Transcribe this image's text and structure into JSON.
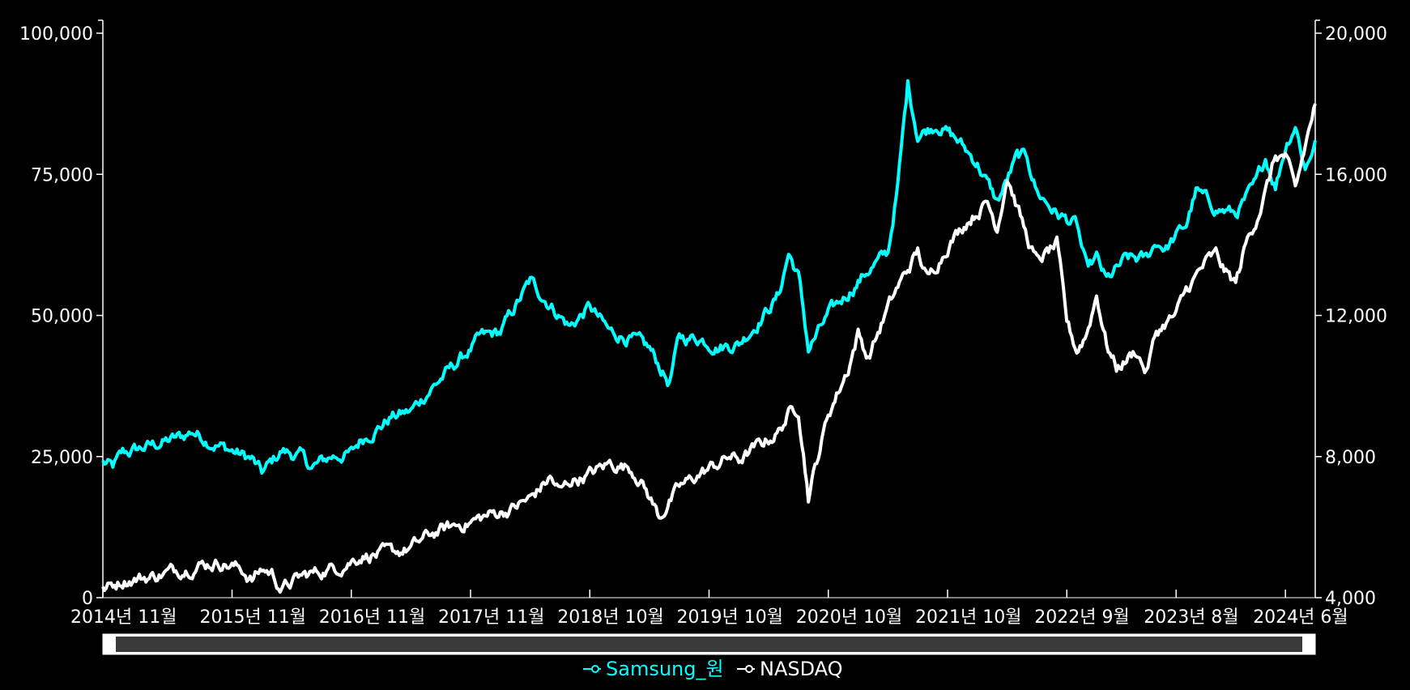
{
  "colors": {
    "background": "#000000",
    "samsung": "#00ffff",
    "nasdaq": "#ffffff",
    "axis": "#ffffff",
    "scrollbar_track": "#ffffff",
    "scrollbar_thumb": "#3a3a3a"
  },
  "chart_data": {
    "type": "line",
    "title": "",
    "xlabel": "",
    "x_range": [
      "2014-04",
      "2024-06"
    ],
    "y_left": {
      "range": [
        0,
        100000
      ],
      "ticks": [
        {
          "value": 0,
          "label": "0"
        },
        {
          "value": 25000,
          "label": "25,000"
        },
        {
          "value": 50000,
          "label": "50,000"
        },
        {
          "value": 75000,
          "label": "75,000"
        },
        {
          "value": 100000,
          "label": "100,000"
        }
      ]
    },
    "y_right": {
      "range": [
        4000,
        20000
      ],
      "ticks": [
        {
          "value": 4000,
          "label": "4,000"
        },
        {
          "value": 8000,
          "label": "8,000"
        },
        {
          "value": 12000,
          "label": "12,000"
        },
        {
          "value": 16000,
          "label": "16,000"
        },
        {
          "value": 20000,
          "label": "20,000"
        }
      ]
    },
    "x_ticks": [
      {
        "date": "2014-04",
        "label": "2014년 11월"
      },
      {
        "date": "2015-05",
        "label": "2015년 11월"
      },
      {
        "date": "2016-05",
        "label": "2016년 11월"
      },
      {
        "date": "2017-05",
        "label": "2017년 11월"
      },
      {
        "date": "2018-05",
        "label": "2018년 10월"
      },
      {
        "date": "2019-05",
        "label": "2019년 10월"
      },
      {
        "date": "2020-05",
        "label": "2020년 10월"
      },
      {
        "date": "2021-05",
        "label": "2021년 10월"
      },
      {
        "date": "2022-05",
        "label": "2022년 9월"
      },
      {
        "date": "2023-04",
        "label": "2023년 8월"
      },
      {
        "date": "2024-03",
        "label": "2024년 6월"
      }
    ],
    "legend_placement": "bottom-center",
    "grid": false,
    "series": [
      {
        "name": "Samsung_원",
        "axis": "left",
        "points": [
          [
            "2014-04",
            24000
          ],
          [
            "2014-05",
            23000
          ],
          [
            "2014-06",
            25500
          ],
          [
            "2014-08",
            26500
          ],
          [
            "2014-10",
            27500
          ],
          [
            "2014-12",
            28500
          ],
          [
            "2015-01",
            29500
          ],
          [
            "2015-03",
            27500
          ],
          [
            "2015-05",
            26000
          ],
          [
            "2015-07",
            24500
          ],
          [
            "2015-08",
            22000
          ],
          [
            "2015-10",
            26000
          ],
          [
            "2015-12",
            25000
          ],
          [
            "2016-01",
            23000
          ],
          [
            "2016-03",
            25000
          ],
          [
            "2016-05",
            25500
          ],
          [
            "2016-06",
            28000
          ],
          [
            "2016-08",
            30500
          ],
          [
            "2016-09",
            32000
          ],
          [
            "2016-11",
            33000
          ],
          [
            "2017-01",
            37000
          ],
          [
            "2017-03",
            40500
          ],
          [
            "2017-05",
            44000
          ],
          [
            "2017-06",
            46000
          ],
          [
            "2017-08",
            47000
          ],
          [
            "2017-10",
            53000
          ],
          [
            "2017-11",
            56000
          ],
          [
            "2018-01",
            52000
          ],
          [
            "2018-03",
            48000
          ],
          [
            "2018-05",
            51500
          ],
          [
            "2018-07",
            47000
          ],
          [
            "2018-09",
            46000
          ],
          [
            "2018-11",
            44000
          ],
          [
            "2019-01",
            38000
          ],
          [
            "2019-02",
            46000
          ],
          [
            "2019-04",
            46000
          ],
          [
            "2019-06",
            44500
          ],
          [
            "2019-08",
            45000
          ],
          [
            "2019-10",
            49000
          ],
          [
            "2019-12",
            53500
          ],
          [
            "2020-01",
            61000
          ],
          [
            "2020-02",
            57000
          ],
          [
            "2020-03",
            44000
          ],
          [
            "2020-05",
            50000
          ],
          [
            "2020-07",
            54000
          ],
          [
            "2020-09",
            58000
          ],
          [
            "2020-11",
            61000
          ],
          [
            "2020-12",
            73000
          ],
          [
            "2021-01",
            91000
          ],
          [
            "2021-02",
            82000
          ],
          [
            "2021-04",
            84000
          ],
          [
            "2021-06",
            81000
          ],
          [
            "2021-08",
            77000
          ],
          [
            "2021-10",
            70000
          ],
          [
            "2021-12",
            78000
          ],
          [
            "2022-01",
            78000
          ],
          [
            "2022-02",
            72000
          ],
          [
            "2022-04",
            68000
          ],
          [
            "2022-06",
            66000
          ],
          [
            "2022-07",
            58000
          ],
          [
            "2022-08",
            60000
          ],
          [
            "2022-09",
            56000
          ],
          [
            "2022-11",
            60000
          ],
          [
            "2023-01",
            60000
          ],
          [
            "2023-02",
            63000
          ],
          [
            "2023-03",
            62000
          ],
          [
            "2023-05",
            66000
          ],
          [
            "2023-06",
            72000
          ],
          [
            "2023-08",
            69000
          ],
          [
            "2023-10",
            68000
          ],
          [
            "2023-12",
            73000
          ],
          [
            "2024-01",
            78000
          ],
          [
            "2024-02",
            73000
          ],
          [
            "2024-03",
            80000
          ],
          [
            "2024-04",
            84000
          ],
          [
            "2024-05",
            76000
          ],
          [
            "2024-06",
            81000
          ]
        ]
      },
      {
        "name": "NASDAQ",
        "axis": "right",
        "points": [
          [
            "2014-04",
            4200
          ],
          [
            "2014-05",
            4350
          ],
          [
            "2014-06",
            4500
          ],
          [
            "2014-09",
            4600
          ],
          [
            "2014-11",
            4750
          ],
          [
            "2015-02",
            4950
          ],
          [
            "2015-04",
            5000
          ],
          [
            "2015-06",
            4800
          ],
          [
            "2015-07",
            4500
          ],
          [
            "2015-08",
            4800
          ],
          [
            "2015-09",
            4700
          ],
          [
            "2015-10",
            4250
          ],
          [
            "2015-12",
            4600
          ],
          [
            "2016-02",
            4750
          ],
          [
            "2016-04",
            4900
          ],
          [
            "2016-06",
            5200
          ],
          [
            "2016-09",
            5250
          ],
          [
            "2016-11",
            5400
          ],
          [
            "2017-01",
            5800
          ],
          [
            "2017-03",
            6000
          ],
          [
            "2017-05",
            6150
          ],
          [
            "2017-07",
            6350
          ],
          [
            "2017-09",
            6500
          ],
          [
            "2017-11",
            6800
          ],
          [
            "2018-01",
            7400
          ],
          [
            "2018-02",
            7000
          ],
          [
            "2018-03",
            7300
          ],
          [
            "2018-05",
            7500
          ],
          [
            "2018-07",
            7800
          ],
          [
            "2018-09",
            7700
          ],
          [
            "2018-10",
            7400
          ],
          [
            "2018-12",
            6300
          ],
          [
            "2019-02",
            7100
          ],
          [
            "2019-04",
            7500
          ],
          [
            "2019-06",
            7800
          ],
          [
            "2019-07",
            8000
          ],
          [
            "2019-08",
            7900
          ],
          [
            "2019-10",
            8300
          ],
          [
            "2019-12",
            8700
          ],
          [
            "2020-01",
            9200
          ],
          [
            "2020-02",
            9400
          ],
          [
            "2020-03",
            6900
          ],
          [
            "2020-05",
            9200
          ],
          [
            "2020-07",
            10500
          ],
          [
            "2020-08",
            11500
          ],
          [
            "2020-09",
            10800
          ],
          [
            "2020-11",
            12200
          ],
          [
            "2020-12",
            12800
          ],
          [
            "2021-02",
            13800
          ],
          [
            "2021-03",
            13000
          ],
          [
            "2021-05",
            14000
          ],
          [
            "2021-07",
            14700
          ],
          [
            "2021-09",
            15200
          ],
          [
            "2021-10",
            14500
          ],
          [
            "2021-11",
            16000
          ],
          [
            "2022-01",
            14200
          ],
          [
            "2022-02",
            13500
          ],
          [
            "2022-04",
            14000
          ],
          [
            "2022-05",
            11800
          ],
          [
            "2022-06",
            11000
          ],
          [
            "2022-07",
            11500
          ],
          [
            "2022-08",
            12600
          ],
          [
            "2022-09",
            11200
          ],
          [
            "2022-10",
            10500
          ],
          [
            "2022-12",
            11000
          ],
          [
            "2023-01",
            10400
          ],
          [
            "2023-02",
            11500
          ],
          [
            "2023-03",
            11800
          ],
          [
            "2023-04",
            12000
          ],
          [
            "2023-05",
            12700
          ],
          [
            "2023-07",
            13500
          ],
          [
            "2023-08",
            13700
          ],
          [
            "2023-09",
            13200
          ],
          [
            "2023-10",
            12900
          ],
          [
            "2023-11",
            14000
          ],
          [
            "2023-12",
            14700
          ],
          [
            "2024-01",
            15500
          ],
          [
            "2024-02",
            16500
          ],
          [
            "2024-03",
            16500
          ],
          [
            "2024-04",
            15500
          ],
          [
            "2024-05",
            16800
          ],
          [
            "2024-06",
            18000
          ]
        ]
      }
    ]
  }
}
